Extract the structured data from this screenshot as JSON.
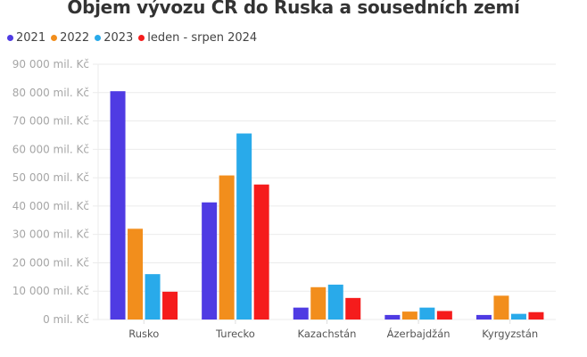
{
  "chart_data": {
    "type": "bar",
    "title": "Objem vývozu ČR do Ruska a sousedních zemí",
    "xlabel": "",
    "ylabel": "",
    "ylim": [
      0,
      90000
    ],
    "yticks": [
      0,
      10000,
      20000,
      30000,
      40000,
      50000,
      60000,
      70000,
      80000,
      90000
    ],
    "ytick_labels": [
      "0 mil. Kč",
      "10 000 mil. Kč",
      "20 000 mil. Kč",
      "30 000 mil. Kč",
      "40 000 mil. Kč",
      "50 000 mil. Kč",
      "60 000 mil. Kč",
      "70 000 mil. Kč",
      "80 000 mil. Kč",
      "90 000 mil. Kč"
    ],
    "grid": true,
    "legend_position": "top-left",
    "categories": [
      "Rusko",
      "Turecko",
      "Kazachstán",
      "Ázerbajdžán",
      "Kyrgyzstán"
    ],
    "series": [
      {
        "name": "2021",
        "color": "#4f3be3",
        "values": [
          80500,
          41300,
          4200,
          1600,
          1600
        ]
      },
      {
        "name": "2022",
        "color": "#f28e1c",
        "values": [
          32000,
          50800,
          11400,
          2800,
          8400
        ]
      },
      {
        "name": "2023",
        "color": "#29aaea",
        "values": [
          16000,
          65600,
          12300,
          4200,
          2000
        ]
      },
      {
        "name": "leden - srpen 2024",
        "color": "#f51c1c",
        "values": [
          9800,
          47600,
          7600,
          3000,
          2600
        ]
      }
    ]
  },
  "header": {
    "title": "Objem vývozu ČR do Ruska a sousedních zemí"
  },
  "legend": [
    {
      "label": "2021",
      "color": "#4f3be3"
    },
    {
      "label": "2022",
      "color": "#f28e1c"
    },
    {
      "label": "2023",
      "color": "#29aaea"
    },
    {
      "label": "leden - srpen 2024",
      "color": "#f51c1c"
    }
  ]
}
